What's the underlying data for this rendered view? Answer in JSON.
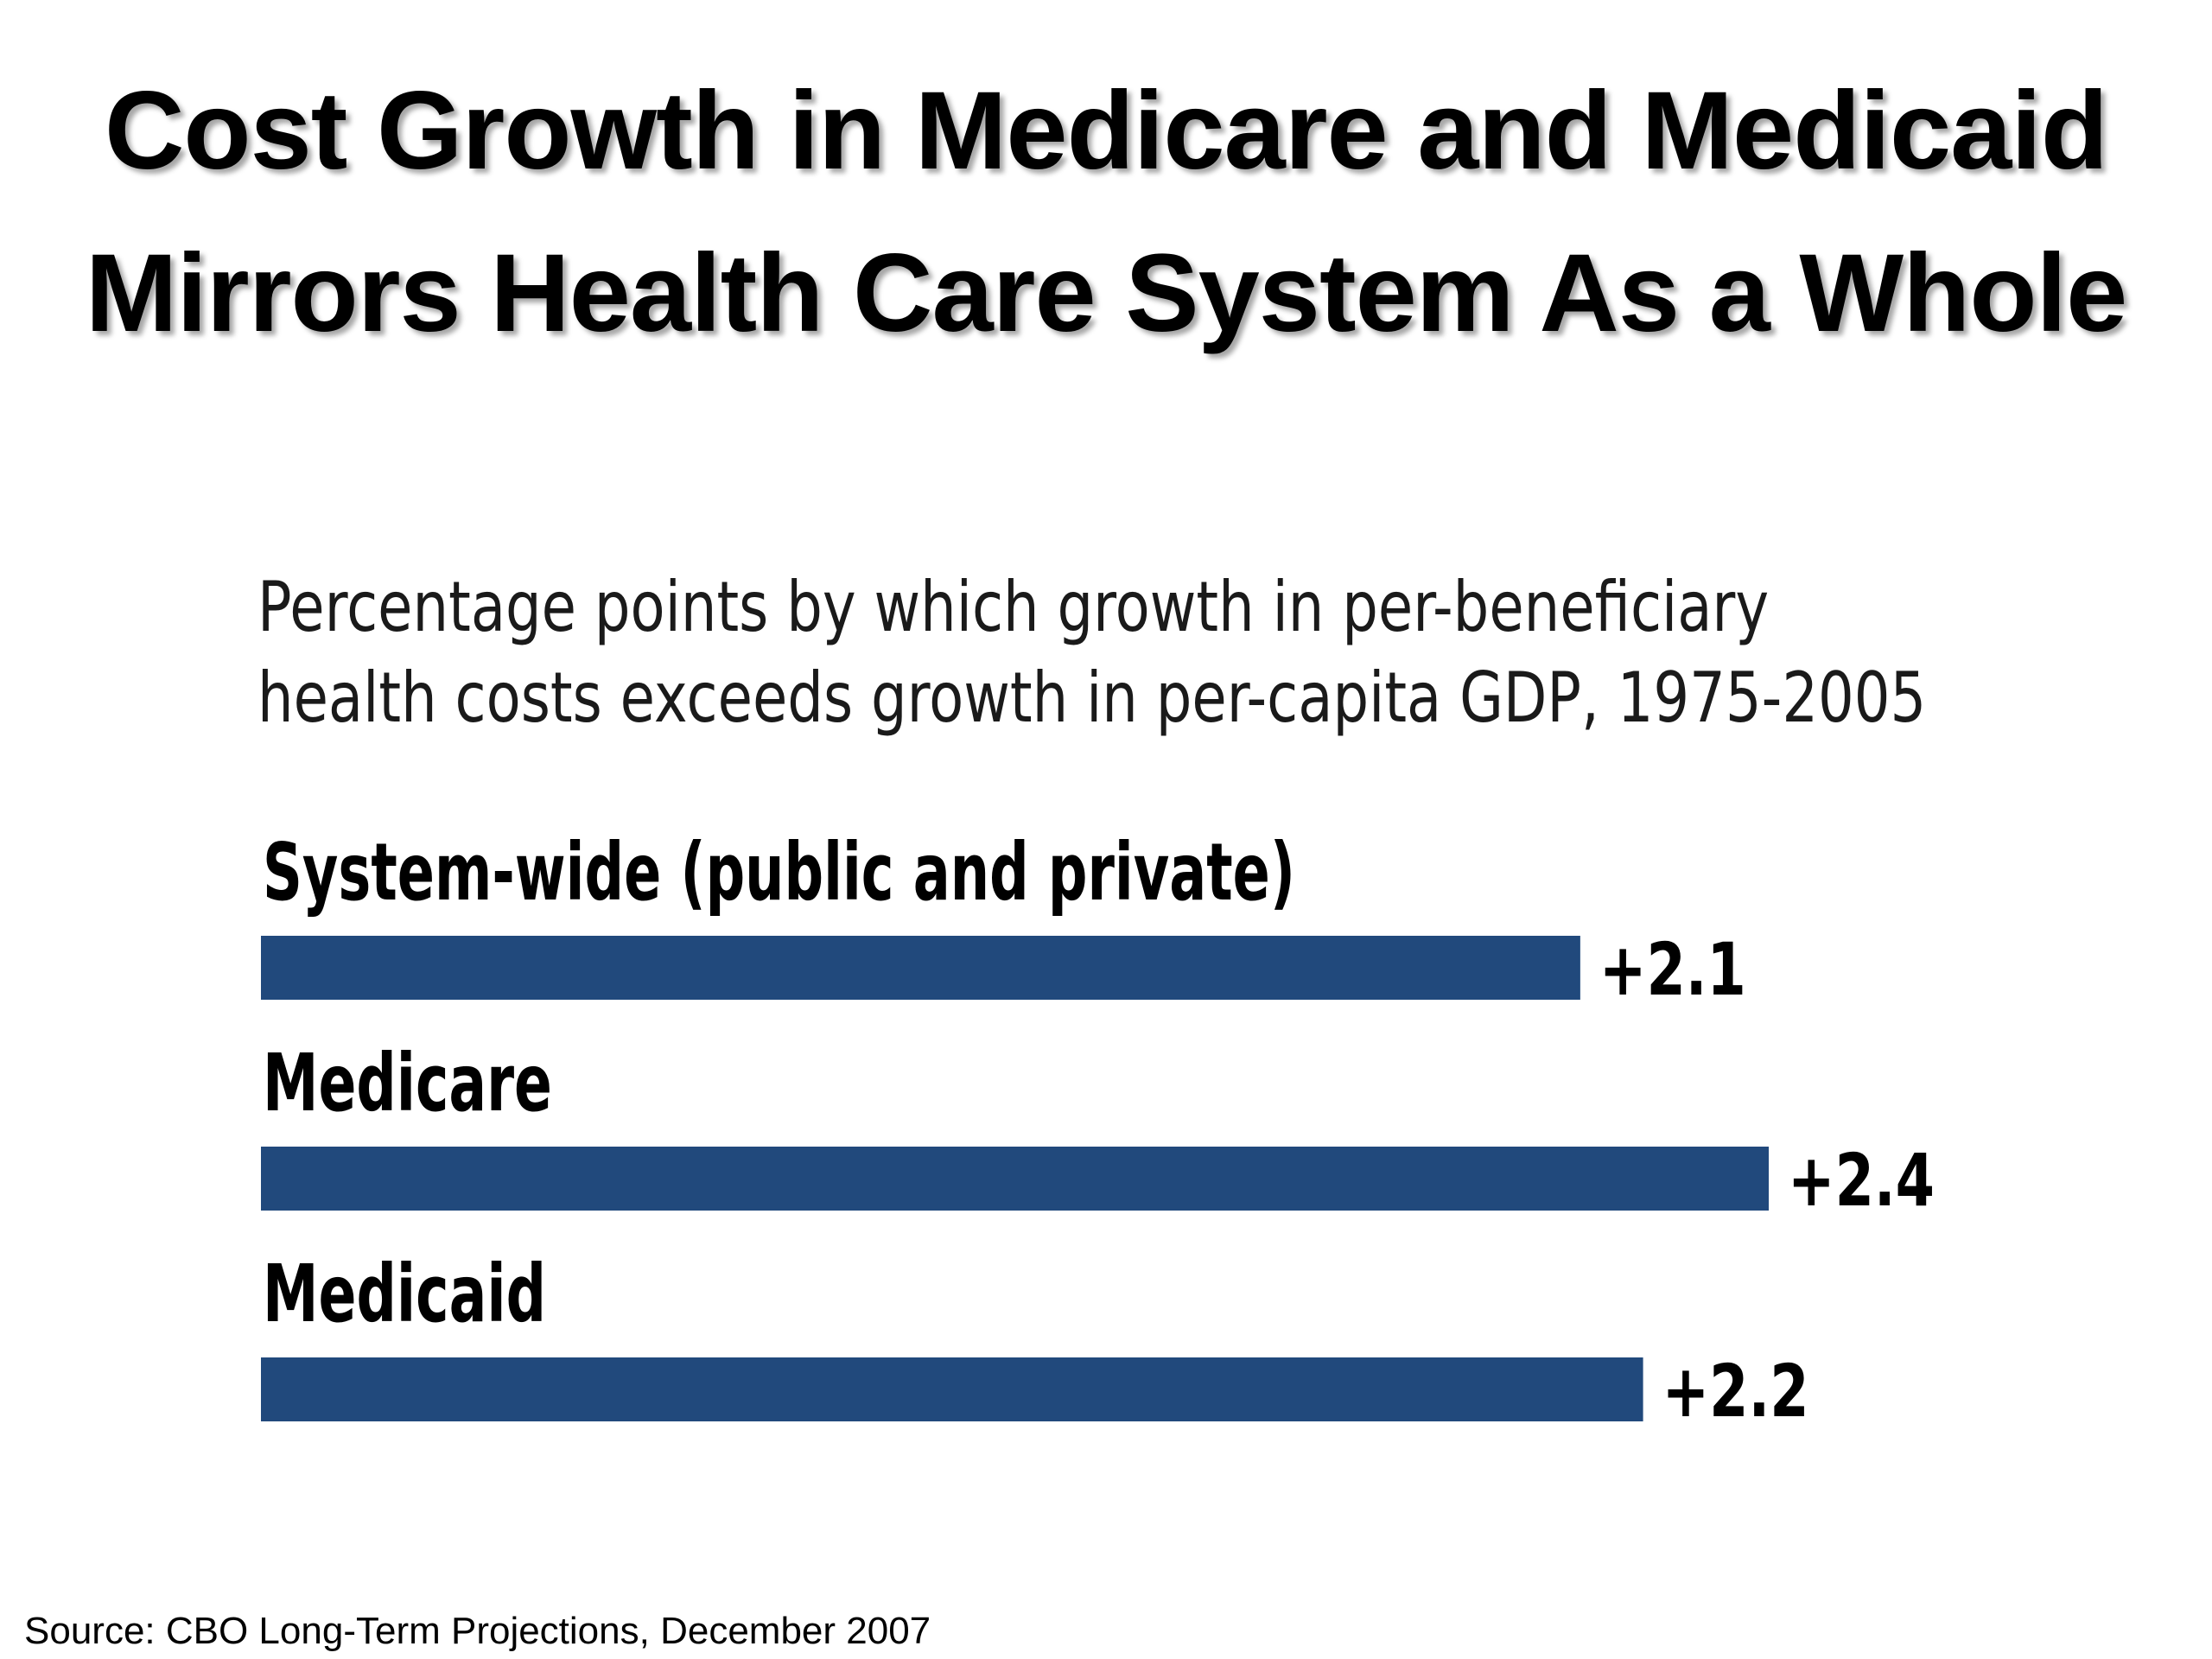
{
  "title_lines": [
    "Cost Growth in Medicare and Medicaid",
    "Mirrors Health Care System As a Whole"
  ],
  "subtitle_lines": [
    "Percentage points by which growth in per-beneficiary",
    "health costs exceeds growth in per-capita GDP, 1975-2005"
  ],
  "source": "Source: CBO Long-Term Projections, December 2007",
  "colors": {
    "bar": "#21497c"
  },
  "chart_data": {
    "type": "bar",
    "orientation": "horizontal",
    "title": "Percentage points by which growth in per-beneficiary health costs exceeds growth in per-capita GDP, 1975-2005",
    "categories": [
      "System-wide (public and private)",
      "Medicare",
      "Medicaid"
    ],
    "values": [
      2.1,
      2.4,
      2.2
    ],
    "value_labels": [
      "+2.1",
      "+2.4",
      "+2.2"
    ],
    "xlim": [
      0,
      2.4
    ],
    "grid": false,
    "legend": "none"
  }
}
